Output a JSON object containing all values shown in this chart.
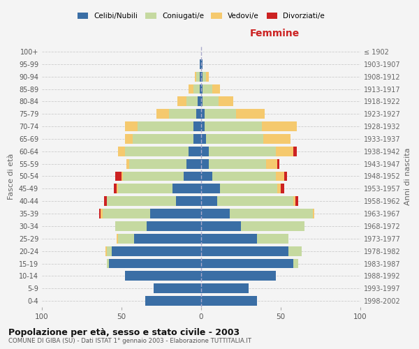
{
  "age_groups": [
    "0-4",
    "5-9",
    "10-14",
    "15-19",
    "20-24",
    "25-29",
    "30-34",
    "35-39",
    "40-44",
    "45-49",
    "50-54",
    "55-59",
    "60-64",
    "65-69",
    "70-74",
    "75-79",
    "80-84",
    "85-89",
    "90-94",
    "95-99",
    "100+"
  ],
  "birth_years": [
    "1998-2002",
    "1993-1997",
    "1988-1992",
    "1983-1987",
    "1978-1982",
    "1973-1977",
    "1968-1972",
    "1963-1967",
    "1958-1962",
    "1953-1957",
    "1948-1952",
    "1943-1947",
    "1938-1942",
    "1933-1937",
    "1928-1932",
    "1923-1927",
    "1918-1922",
    "1913-1917",
    "1908-1912",
    "1903-1907",
    "≤ 1902"
  ],
  "males": {
    "celibi": [
      35,
      30,
      48,
      58,
      56,
      42,
      34,
      32,
      16,
      18,
      11,
      9,
      8,
      5,
      5,
      3,
      2,
      1,
      1,
      1,
      0
    ],
    "coniugati": [
      0,
      0,
      0,
      1,
      3,
      10,
      20,
      30,
      43,
      34,
      38,
      36,
      40,
      38,
      35,
      17,
      7,
      4,
      2,
      0,
      0
    ],
    "vedovi": [
      0,
      0,
      0,
      0,
      1,
      1,
      0,
      1,
      0,
      1,
      1,
      2,
      4,
      5,
      8,
      8,
      6,
      3,
      1,
      0,
      0
    ],
    "divorziati": [
      0,
      0,
      0,
      0,
      0,
      0,
      0,
      1,
      2,
      2,
      4,
      0,
      0,
      0,
      0,
      0,
      0,
      0,
      0,
      0,
      0
    ]
  },
  "females": {
    "nubili": [
      35,
      30,
      47,
      58,
      55,
      35,
      25,
      18,
      10,
      12,
      7,
      5,
      5,
      3,
      2,
      2,
      1,
      1,
      1,
      1,
      0
    ],
    "coniugate": [
      0,
      0,
      0,
      3,
      8,
      20,
      40,
      52,
      48,
      36,
      40,
      36,
      42,
      36,
      36,
      20,
      10,
      6,
      2,
      0,
      0
    ],
    "vedove": [
      0,
      0,
      0,
      0,
      0,
      0,
      0,
      1,
      1,
      2,
      5,
      7,
      11,
      17,
      22,
      18,
      9,
      5,
      2,
      0,
      0
    ],
    "divorziate": [
      0,
      0,
      0,
      0,
      0,
      0,
      0,
      0,
      2,
      2,
      2,
      1,
      2,
      0,
      0,
      0,
      0,
      0,
      0,
      0,
      0
    ]
  },
  "colors": {
    "celibi": "#3a6ea5",
    "coniugati": "#c5d9a0",
    "vedovi": "#f5c96e",
    "divorziati": "#cc2222"
  },
  "xlim": 100,
  "title": "Popolazione per età, sesso e stato civile - 2003",
  "subtitle": "COMUNE DI GIBA (SU) - Dati ISTAT 1° gennaio 2003 - Elaborazione TUTTITALIA.IT",
  "ylabel_left": "Fasce di età",
  "ylabel_right": "Anni di nascita",
  "xlabel_femmine": "Femmine",
  "legend_labels": [
    "Celibi/Nubili",
    "Coniugati/e",
    "Vedovi/e",
    "Divorziati/e"
  ],
  "bg_color": "#f4f4f4",
  "plot_bg": "#f4f4f4"
}
